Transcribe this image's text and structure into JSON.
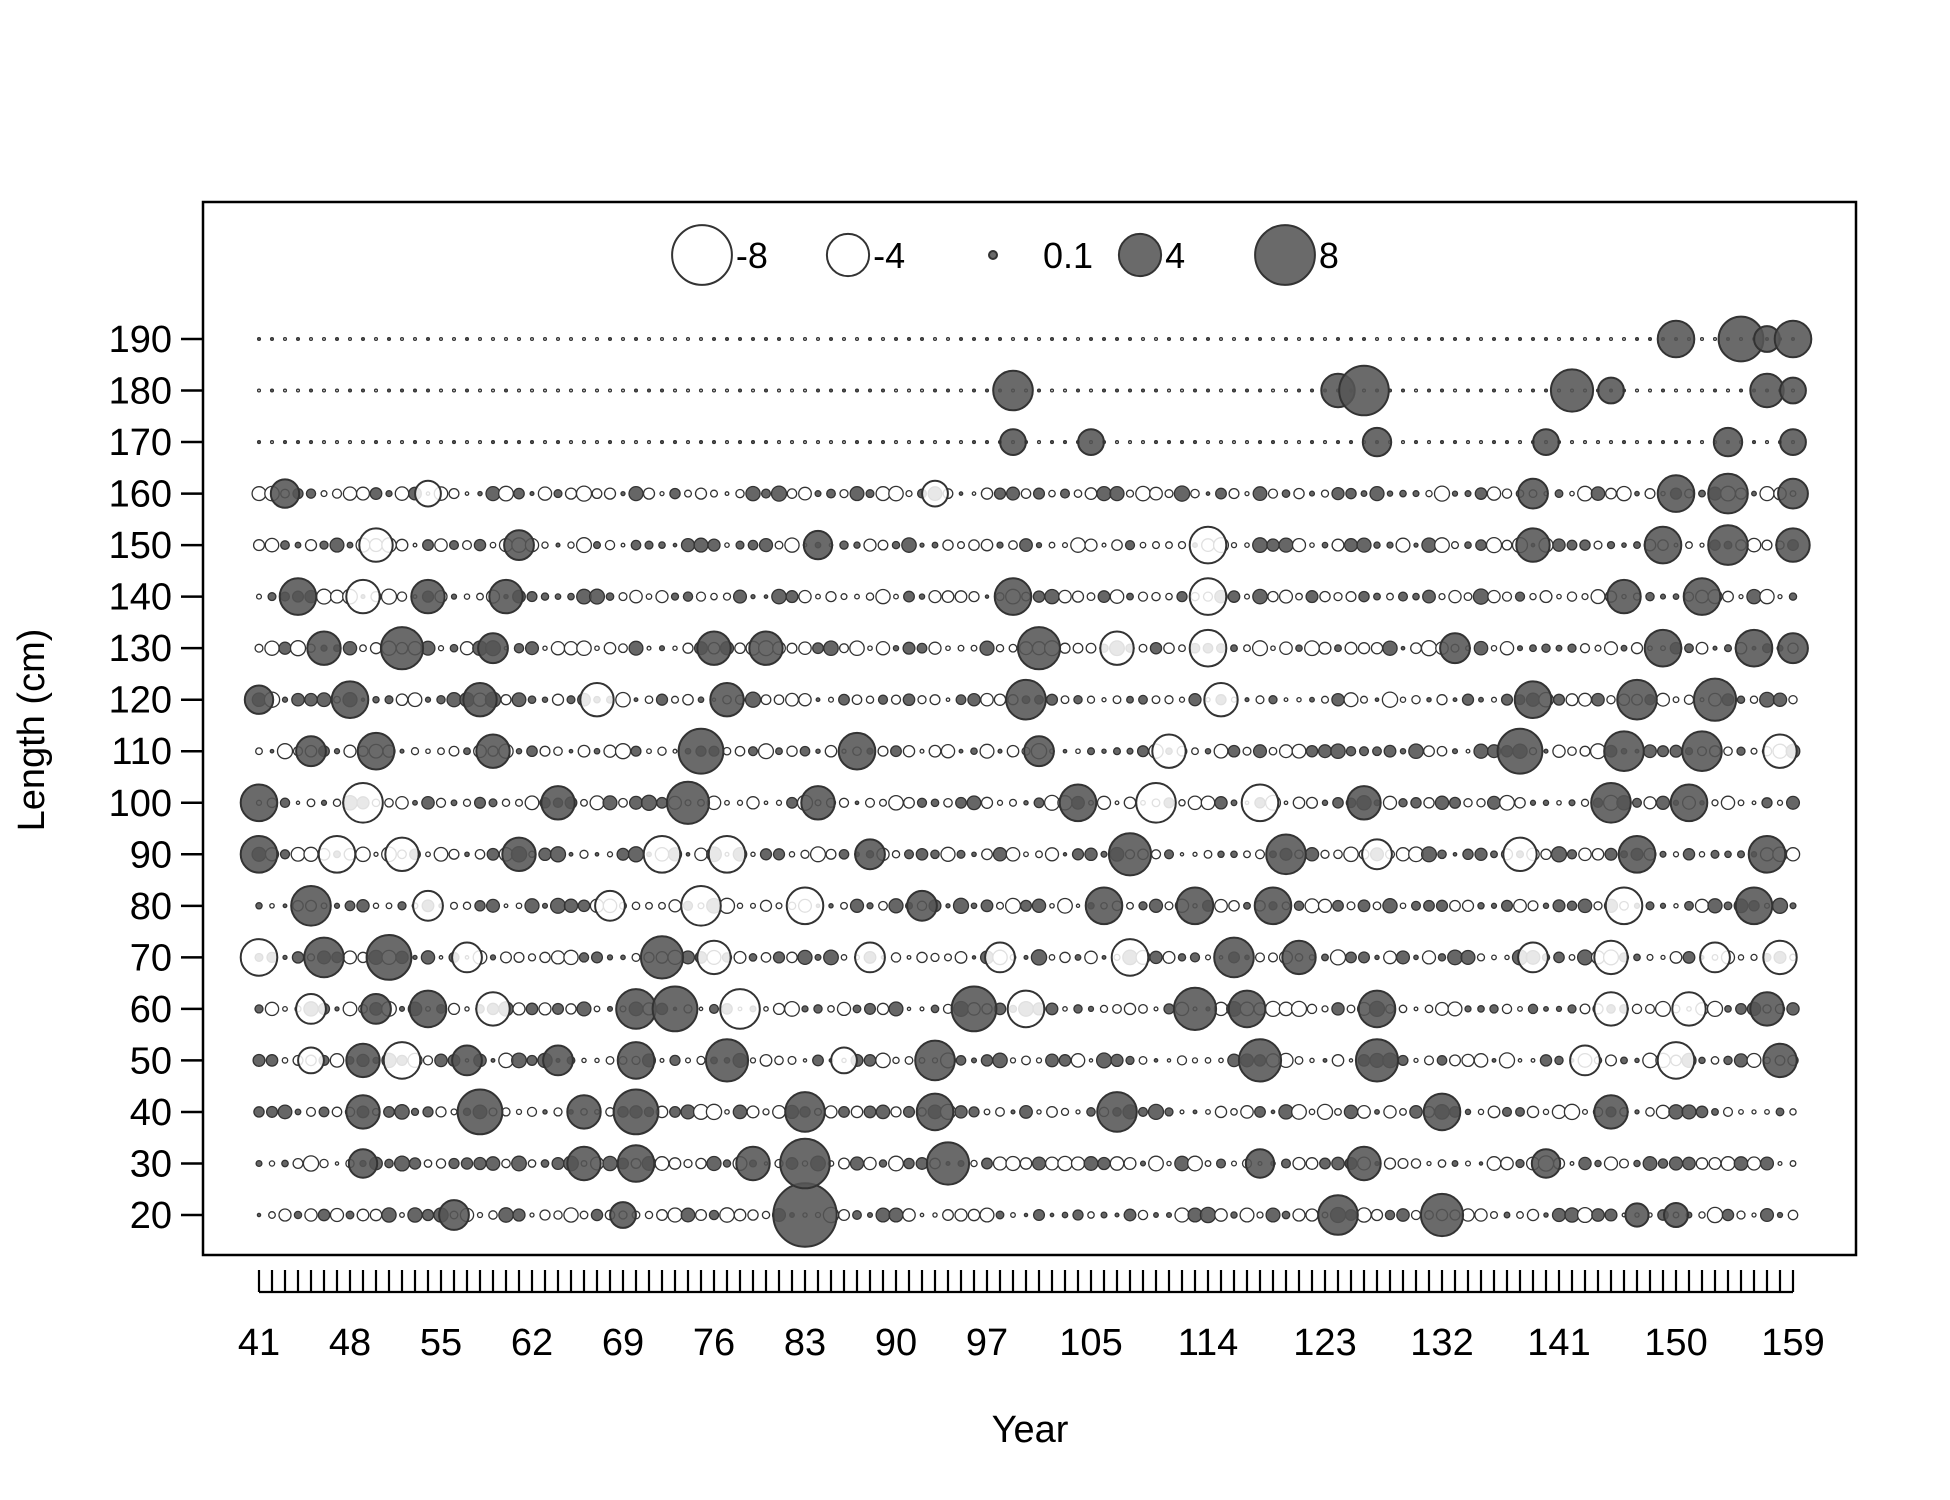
{
  "chart_data": {
    "type": "scatter",
    "subtype": "bubble-residuals",
    "xlabel": "Year",
    "ylabel": "Length (cm)",
    "xlim": [
      41,
      159
    ],
    "ylim": [
      20,
      190
    ],
    "x_tick_labels": [
      "41",
      "48",
      "55",
      "62",
      "69",
      "76",
      "83",
      "90",
      "97",
      "105",
      "114",
      "123",
      "132",
      "141",
      "150",
      "159"
    ],
    "y_tick_labels": [
      "20",
      "30",
      "40",
      "50",
      "60",
      "70",
      "80",
      "90",
      "100",
      "110",
      "120",
      "130",
      "140",
      "150",
      "160",
      "170",
      "180",
      "190"
    ],
    "x_ticks_every_year": true,
    "grid": false,
    "legend": {
      "placement": "top-center",
      "entries": [
        {
          "label": "-8",
          "value": -8
        },
        {
          "label": "-4",
          "value": -4
        },
        {
          "label": "0.1",
          "value": 0.1
        },
        {
          "label": "4",
          "value": 4
        },
        {
          "label": "8",
          "value": 8
        }
      ]
    },
    "encoding": {
      "negative": "open circle",
      "positive": "filled circle",
      "size": "proportional to magnitude"
    },
    "colors": {
      "positive_fill": "#555555",
      "negative_fill": "#ffffff",
      "stroke": "#333333"
    },
    "points": [
      {
        "x": 56,
        "y": 20,
        "v": 2.0
      },
      {
        "x": 69,
        "y": 20,
        "v": 1.5
      },
      {
        "x": 83,
        "y": 20,
        "v": 9.0
      },
      {
        "x": 124,
        "y": 20,
        "v": 3.5
      },
      {
        "x": 132,
        "y": 20,
        "v": 4.0
      },
      {
        "x": 147,
        "y": 20,
        "v": 1.2
      },
      {
        "x": 150,
        "y": 20,
        "v": 1.3
      },
      {
        "x": 49,
        "y": 30,
        "v": 1.8
      },
      {
        "x": 66,
        "y": 30,
        "v": 2.5
      },
      {
        "x": 70,
        "y": 30,
        "v": 3.0
      },
      {
        "x": 79,
        "y": 30,
        "v": 2.5
      },
      {
        "x": 83,
        "y": 30,
        "v": 5.5
      },
      {
        "x": 94,
        "y": 30,
        "v": 4.0
      },
      {
        "x": 118,
        "y": 30,
        "v": 1.8
      },
      {
        "x": 126,
        "y": 30,
        "v": 2.5
      },
      {
        "x": 140,
        "y": 30,
        "v": 1.8
      },
      {
        "x": 49,
        "y": 40,
        "v": 2.5
      },
      {
        "x": 58,
        "y": 40,
        "v": 4.5
      },
      {
        "x": 66,
        "y": 40,
        "v": 2.5
      },
      {
        "x": 70,
        "y": 40,
        "v": 4.5
      },
      {
        "x": 83,
        "y": 40,
        "v": 3.5
      },
      {
        "x": 93,
        "y": 40,
        "v": 3.0
      },
      {
        "x": 107,
        "y": 40,
        "v": 3.5
      },
      {
        "x": 132,
        "y": 40,
        "v": 3.0
      },
      {
        "x": 145,
        "y": 40,
        "v": 2.5
      },
      {
        "x": 45,
        "y": 50,
        "v": -1.5
      },
      {
        "x": 49,
        "y": 50,
        "v": 2.5
      },
      {
        "x": 52,
        "y": 50,
        "v": -3.0
      },
      {
        "x": 57,
        "y": 50,
        "v": 2.0
      },
      {
        "x": 64,
        "y": 50,
        "v": 2.0
      },
      {
        "x": 70,
        "y": 50,
        "v": 3.0
      },
      {
        "x": 77,
        "y": 50,
        "v": 4.0
      },
      {
        "x": 86,
        "y": 50,
        "v": -1.5
      },
      {
        "x": 93,
        "y": 50,
        "v": 3.5
      },
      {
        "x": 118,
        "y": 50,
        "v": 4.0
      },
      {
        "x": 127,
        "y": 50,
        "v": 4.0
      },
      {
        "x": 143,
        "y": 50,
        "v": -2.0
      },
      {
        "x": 150,
        "y": 50,
        "v": -3.0
      },
      {
        "x": 158,
        "y": 50,
        "v": 2.5
      },
      {
        "x": 45,
        "y": 60,
        "v": -2.0
      },
      {
        "x": 50,
        "y": 60,
        "v": 2.0
      },
      {
        "x": 54,
        "y": 60,
        "v": 3.0
      },
      {
        "x": 59,
        "y": 60,
        "v": -2.5
      },
      {
        "x": 70,
        "y": 60,
        "v": 3.5
      },
      {
        "x": 73,
        "y": 60,
        "v": 4.5
      },
      {
        "x": 78,
        "y": 60,
        "v": -3.5
      },
      {
        "x": 96,
        "y": 60,
        "v": 4.5
      },
      {
        "x": 100,
        "y": 60,
        "v": -3.0
      },
      {
        "x": 113,
        "y": 60,
        "v": 4.0
      },
      {
        "x": 117,
        "y": 60,
        "v": 3.0
      },
      {
        "x": 127,
        "y": 60,
        "v": 3.0
      },
      {
        "x": 145,
        "y": 60,
        "v": -2.5
      },
      {
        "x": 151,
        "y": 60,
        "v": -2.5
      },
      {
        "x": 157,
        "y": 60,
        "v": 2.5
      },
      {
        "x": 41,
        "y": 70,
        "v": -3.0
      },
      {
        "x": 46,
        "y": 70,
        "v": 3.5
      },
      {
        "x": 51,
        "y": 70,
        "v": 4.5
      },
      {
        "x": 57,
        "y": 70,
        "v": -2.0
      },
      {
        "x": 72,
        "y": 70,
        "v": 4.0
      },
      {
        "x": 76,
        "y": 70,
        "v": -2.5
      },
      {
        "x": 88,
        "y": 70,
        "v": -2.0
      },
      {
        "x": 98,
        "y": 70,
        "v": -2.0
      },
      {
        "x": 108,
        "y": 70,
        "v": -3.0
      },
      {
        "x": 116,
        "y": 70,
        "v": 3.5
      },
      {
        "x": 121,
        "y": 70,
        "v": 2.5
      },
      {
        "x": 139,
        "y": 70,
        "v": -2.0
      },
      {
        "x": 145,
        "y": 70,
        "v": -2.5
      },
      {
        "x": 153,
        "y": 70,
        "v": -2.0
      },
      {
        "x": 158,
        "y": 70,
        "v": -2.5
      },
      {
        "x": 45,
        "y": 80,
        "v": 3.5
      },
      {
        "x": 54,
        "y": 80,
        "v": -2.0
      },
      {
        "x": 68,
        "y": 80,
        "v": -2.0
      },
      {
        "x": 75,
        "y": 80,
        "v": -3.5
      },
      {
        "x": 83,
        "y": 80,
        "v": -3.0
      },
      {
        "x": 92,
        "y": 80,
        "v": 2.0
      },
      {
        "x": 106,
        "y": 80,
        "v": 3.0
      },
      {
        "x": 113,
        "y": 80,
        "v": 3.0
      },
      {
        "x": 119,
        "y": 80,
        "v": 3.0
      },
      {
        "x": 146,
        "y": 80,
        "v": -3.0
      },
      {
        "x": 156,
        "y": 80,
        "v": 3.0
      },
      {
        "x": 41,
        "y": 90,
        "v": 3.0
      },
      {
        "x": 47,
        "y": 90,
        "v": -3.0
      },
      {
        "x": 52,
        "y": 90,
        "v": -2.5
      },
      {
        "x": 61,
        "y": 90,
        "v": 2.5
      },
      {
        "x": 72,
        "y": 90,
        "v": -3.0
      },
      {
        "x": 77,
        "y": 90,
        "v": -3.0
      },
      {
        "x": 88,
        "y": 90,
        "v": 2.0
      },
      {
        "x": 108,
        "y": 90,
        "v": 4.0
      },
      {
        "x": 120,
        "y": 90,
        "v": 3.5
      },
      {
        "x": 127,
        "y": 90,
        "v": -2.0
      },
      {
        "x": 138,
        "y": 90,
        "v": -2.5
      },
      {
        "x": 147,
        "y": 90,
        "v": 3.0
      },
      {
        "x": 157,
        "y": 90,
        "v": 3.0
      },
      {
        "x": 41,
        "y": 100,
        "v": 3.0
      },
      {
        "x": 49,
        "y": 100,
        "v": -3.5
      },
      {
        "x": 64,
        "y": 100,
        "v": 2.5
      },
      {
        "x": 74,
        "y": 100,
        "v": 4.0
      },
      {
        "x": 84,
        "y": 100,
        "v": 2.5
      },
      {
        "x": 104,
        "y": 100,
        "v": 3.0
      },
      {
        "x": 110,
        "y": 100,
        "v": -3.5
      },
      {
        "x": 118,
        "y": 100,
        "v": -3.0
      },
      {
        "x": 126,
        "y": 100,
        "v": 2.5
      },
      {
        "x": 145,
        "y": 100,
        "v": 3.5
      },
      {
        "x": 151,
        "y": 100,
        "v": 3.0
      },
      {
        "x": 45,
        "y": 110,
        "v": 2.0
      },
      {
        "x": 50,
        "y": 110,
        "v": 3.0
      },
      {
        "x": 59,
        "y": 110,
        "v": 2.5
      },
      {
        "x": 75,
        "y": 110,
        "v": 4.5
      },
      {
        "x": 87,
        "y": 110,
        "v": 3.0
      },
      {
        "x": 101,
        "y": 110,
        "v": 2.0
      },
      {
        "x": 111,
        "y": 110,
        "v": -2.5
      },
      {
        "x": 138,
        "y": 110,
        "v": 4.5
      },
      {
        "x": 146,
        "y": 110,
        "v": 3.5
      },
      {
        "x": 152,
        "y": 110,
        "v": 3.5
      },
      {
        "x": 158,
        "y": 110,
        "v": -2.5
      },
      {
        "x": 41,
        "y": 120,
        "v": 1.8
      },
      {
        "x": 48,
        "y": 120,
        "v": 3.0
      },
      {
        "x": 58,
        "y": 120,
        "v": 2.5
      },
      {
        "x": 67,
        "y": 120,
        "v": -2.5
      },
      {
        "x": 77,
        "y": 120,
        "v": 2.5
      },
      {
        "x": 100,
        "y": 120,
        "v": 3.5
      },
      {
        "x": 115,
        "y": 120,
        "v": -2.5
      },
      {
        "x": 139,
        "y": 120,
        "v": 3.0
      },
      {
        "x": 147,
        "y": 120,
        "v": 3.5
      },
      {
        "x": 153,
        "y": 120,
        "v": 4.0
      },
      {
        "x": 46,
        "y": 130,
        "v": 2.5
      },
      {
        "x": 52,
        "y": 130,
        "v": 4.0
      },
      {
        "x": 59,
        "y": 130,
        "v": 2.0
      },
      {
        "x": 76,
        "y": 130,
        "v": 2.5
      },
      {
        "x": 80,
        "y": 130,
        "v": 2.5
      },
      {
        "x": 101,
        "y": 130,
        "v": 4.0
      },
      {
        "x": 107,
        "y": 130,
        "v": -2.5
      },
      {
        "x": 114,
        "y": 130,
        "v": -3.0
      },
      {
        "x": 133,
        "y": 130,
        "v": 2.0
      },
      {
        "x": 149,
        "y": 130,
        "v": 3.0
      },
      {
        "x": 156,
        "y": 130,
        "v": 3.0
      },
      {
        "x": 159,
        "y": 130,
        "v": 2.0
      },
      {
        "x": 44,
        "y": 140,
        "v": 3.0
      },
      {
        "x": 49,
        "y": 140,
        "v": -2.5
      },
      {
        "x": 54,
        "y": 140,
        "v": 2.5
      },
      {
        "x": 60,
        "y": 140,
        "v": 2.5
      },
      {
        "x": 99,
        "y": 140,
        "v": 3.0
      },
      {
        "x": 114,
        "y": 140,
        "v": -3.0
      },
      {
        "x": 146,
        "y": 140,
        "v": 2.5
      },
      {
        "x": 152,
        "y": 140,
        "v": 3.0
      },
      {
        "x": 50,
        "y": 150,
        "v": -2.5
      },
      {
        "x": 61,
        "y": 150,
        "v": 2.0
      },
      {
        "x": 84,
        "y": 150,
        "v": 1.8
      },
      {
        "x": 114,
        "y": 150,
        "v": -3.0
      },
      {
        "x": 139,
        "y": 150,
        "v": 2.5
      },
      {
        "x": 149,
        "y": 150,
        "v": 3.0
      },
      {
        "x": 154,
        "y": 150,
        "v": 3.5
      },
      {
        "x": 159,
        "y": 150,
        "v": 2.5
      },
      {
        "x": 43,
        "y": 160,
        "v": 1.8
      },
      {
        "x": 54,
        "y": 160,
        "v": -1.5
      },
      {
        "x": 93,
        "y": 160,
        "v": -1.5
      },
      {
        "x": 139,
        "y": 160,
        "v": 2.0
      },
      {
        "x": 150,
        "y": 160,
        "v": 3.0
      },
      {
        "x": 154,
        "y": 160,
        "v": 3.5
      },
      {
        "x": 159,
        "y": 160,
        "v": 2.0
      },
      {
        "x": 99,
        "y": 170,
        "v": 1.5
      },
      {
        "x": 105,
        "y": 170,
        "v": 1.5
      },
      {
        "x": 127,
        "y": 170,
        "v": 1.8
      },
      {
        "x": 140,
        "y": 170,
        "v": 1.5
      },
      {
        "x": 154,
        "y": 170,
        "v": 1.8
      },
      {
        "x": 159,
        "y": 170,
        "v": 1.5
      },
      {
        "x": 99,
        "y": 180,
        "v": 3.5
      },
      {
        "x": 124,
        "y": 180,
        "v": 2.5
      },
      {
        "x": 126,
        "y": 180,
        "v": 5.5
      },
      {
        "x": 142,
        "y": 180,
        "v": 4.0
      },
      {
        "x": 145,
        "y": 180,
        "v": 1.5
      },
      {
        "x": 157,
        "y": 180,
        "v": 2.5
      },
      {
        "x": 159,
        "y": 180,
        "v": 1.5
      },
      {
        "x": 150,
        "y": 190,
        "v": 3.0
      },
      {
        "x": 155,
        "y": 190,
        "v": 4.5
      },
      {
        "x": 157,
        "y": 190,
        "v": 1.5
      },
      {
        "x": 159,
        "y": 190,
        "v": 3.0
      }
    ]
  }
}
